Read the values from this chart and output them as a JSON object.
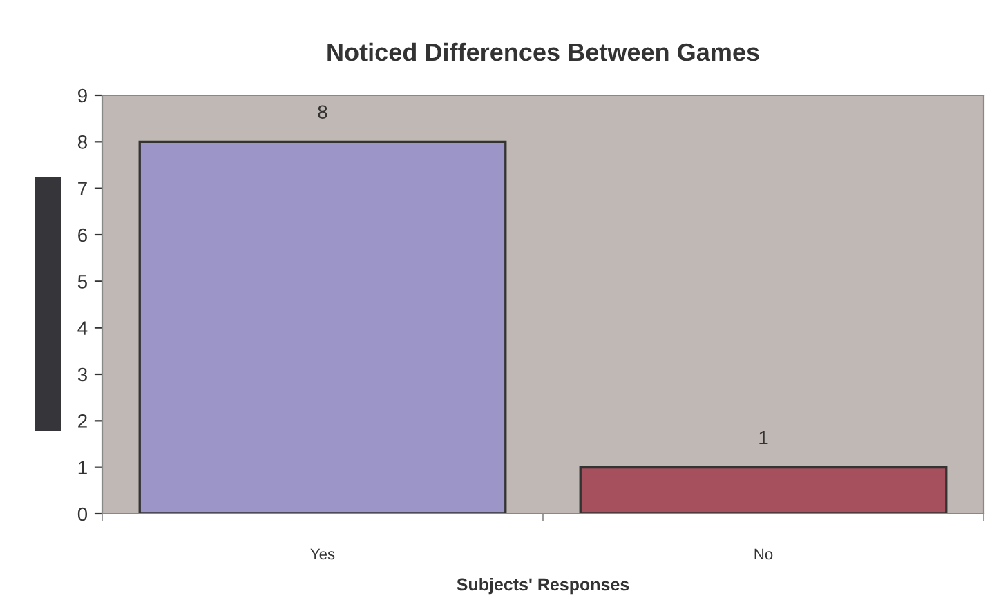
{
  "chart_data": {
    "type": "bar",
    "title": "Noticed Differences Between Games",
    "xlabel": "Subjects' Responses",
    "categories": [
      "Yes",
      "No"
    ],
    "values": [
      8,
      1
    ],
    "colors": [
      "#9b95c8",
      "#a6505e"
    ],
    "ylim": [
      0,
      9
    ],
    "yticks": [
      0,
      1,
      2,
      3,
      4,
      5,
      6,
      7,
      8,
      9
    ],
    "grid": false,
    "data_labels": true,
    "legend": false
  }
}
